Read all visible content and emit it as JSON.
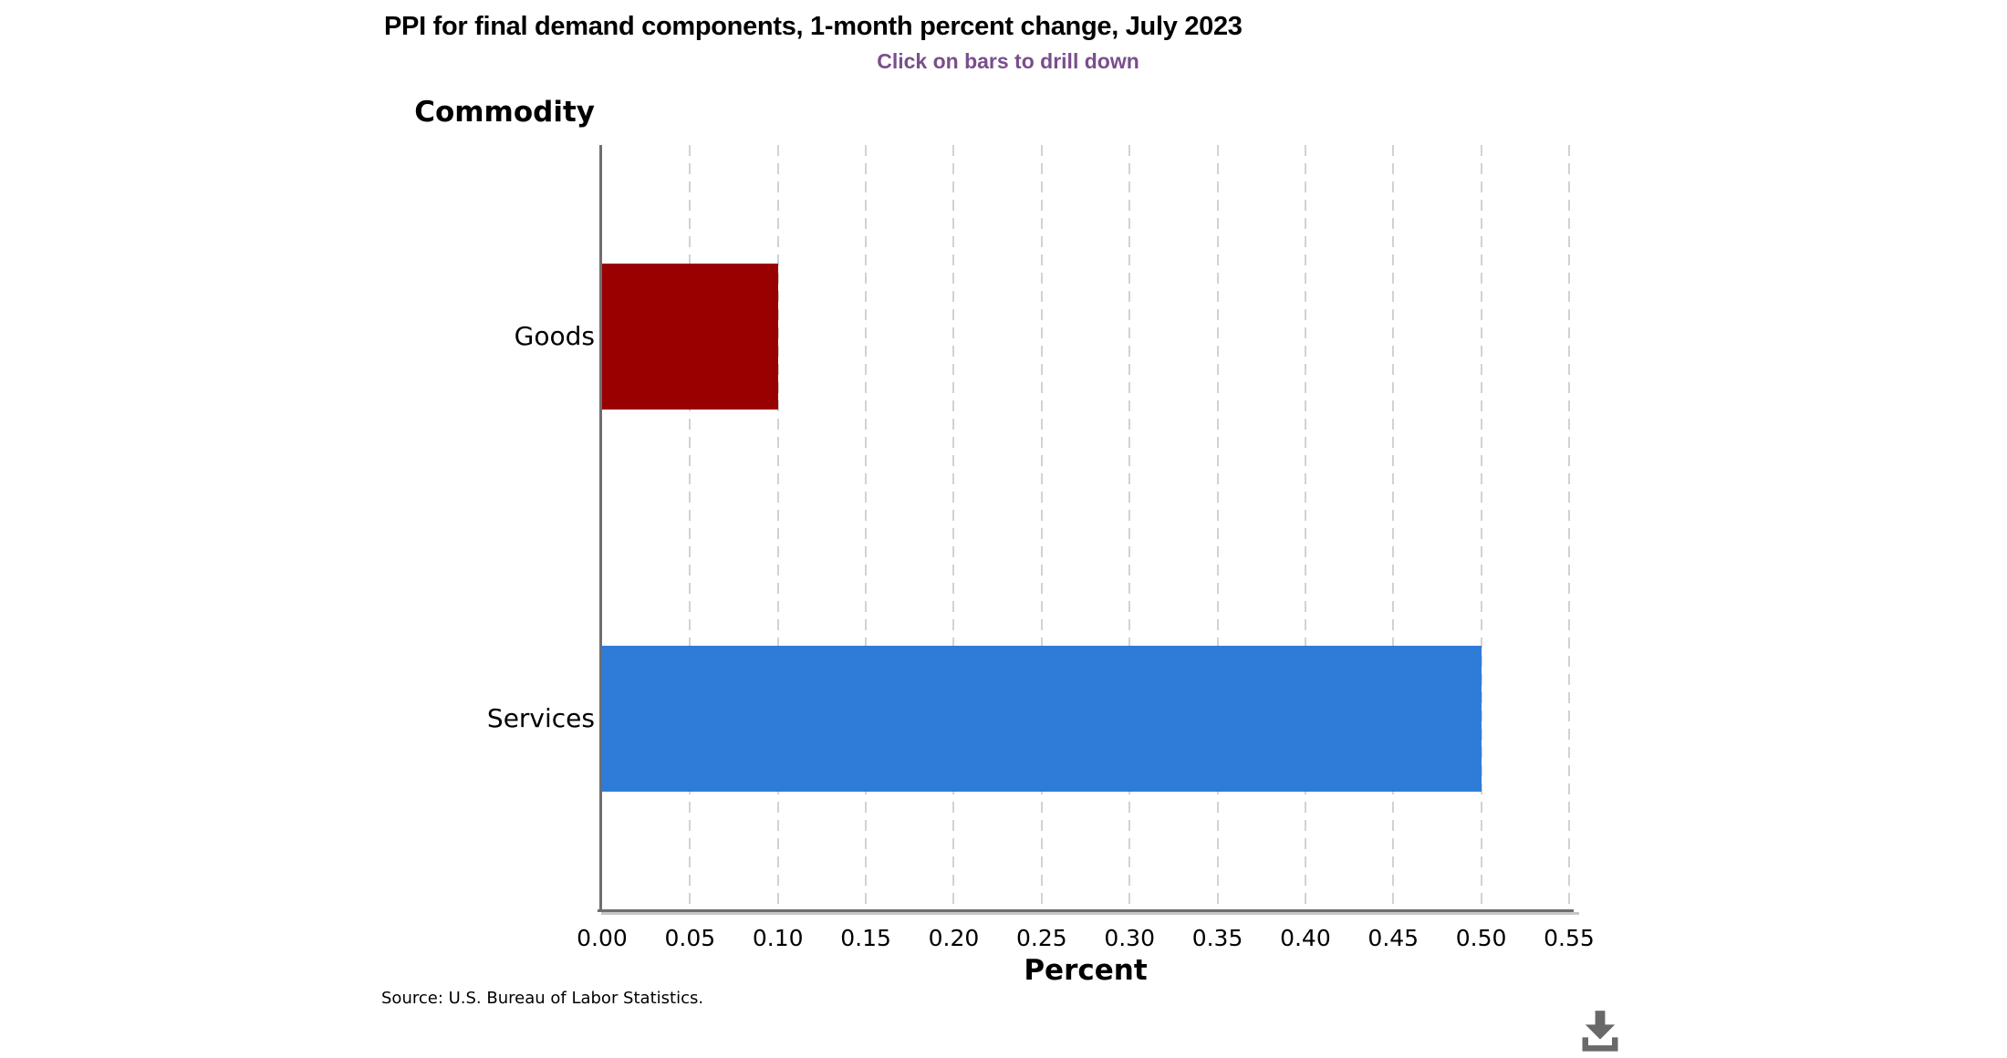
{
  "chart": {
    "title": "PPI for final demand components, 1-month percent change, July 2023",
    "subtitle": "Click on bars to drill down",
    "y_axis_title": "Commodity",
    "x_axis_title": "Percent",
    "source": "Source: U.S. Bureau of Labor Statistics."
  },
  "icons": {
    "download": "download-icon"
  },
  "colors": {
    "subtitle_purple": "#7A4E8C",
    "axis_gray": "#6E6E6E",
    "axis_shadow_gray": "#C6C6C6",
    "gridline_gray": "#D2D2D2",
    "download_gray": "#696969",
    "bar_goods_red": "#990000",
    "bar_services_blue": "#2F7CD8"
  },
  "chart_data": {
    "type": "bar",
    "orientation": "horizontal",
    "title": "PPI for final demand components, 1-month percent change, July 2023",
    "subtitle": "Click on bars to drill down",
    "categories": [
      "Goods",
      "Services"
    ],
    "values": [
      0.1,
      0.5
    ],
    "bar_colors": [
      "#990000",
      "#2F7CD8"
    ],
    "xlabel": "Percent",
    "ylabel": "Commodity",
    "xlim": [
      0,
      0.55
    ],
    "xticks": [
      0.0,
      0.05,
      0.1,
      0.15,
      0.2,
      0.25,
      0.3,
      0.35,
      0.4,
      0.45,
      0.5,
      0.55
    ],
    "tick_decimals": 2,
    "grid": "vertical-dashed",
    "legend": "none"
  }
}
